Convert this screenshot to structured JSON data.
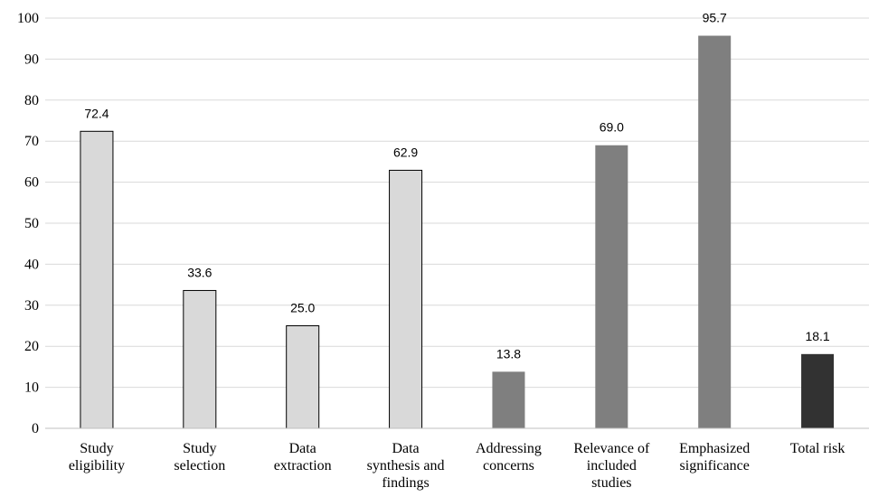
{
  "chart_data": {
    "type": "bar",
    "categories": [
      [
        "Study",
        "eligibility"
      ],
      [
        "Study",
        "selection"
      ],
      [
        "Data",
        "extraction"
      ],
      [
        "Data",
        "synthesis and",
        "findings"
      ],
      [
        "Addressing",
        "concerns"
      ],
      [
        "Relevance of",
        "included",
        "studies"
      ],
      [
        "Emphasized",
        "significance"
      ],
      [
        "Total risk"
      ]
    ],
    "values": [
      72.4,
      33.6,
      25.0,
      62.9,
      13.8,
      69.0,
      95.7,
      18.1
    ],
    "data_labels": [
      "72.4",
      "33.6",
      "25.0",
      "62.9",
      "13.8",
      "69.0",
      "95.7",
      "18.1"
    ],
    "bar_colors": [
      "#d9d9d9",
      "#d9d9d9",
      "#d9d9d9",
      "#d9d9d9",
      "#7f7f7f",
      "#7f7f7f",
      "#7f7f7f",
      "#323232"
    ],
    "bar_outlined": [
      true,
      true,
      true,
      true,
      false,
      false,
      false,
      false
    ],
    "yticks": [
      0,
      10,
      20,
      30,
      40,
      50,
      60,
      70,
      80,
      90,
      100
    ],
    "ylim": [
      0,
      100
    ],
    "grid": true,
    "title": "",
    "xlabel": "",
    "ylabel": ""
  }
}
